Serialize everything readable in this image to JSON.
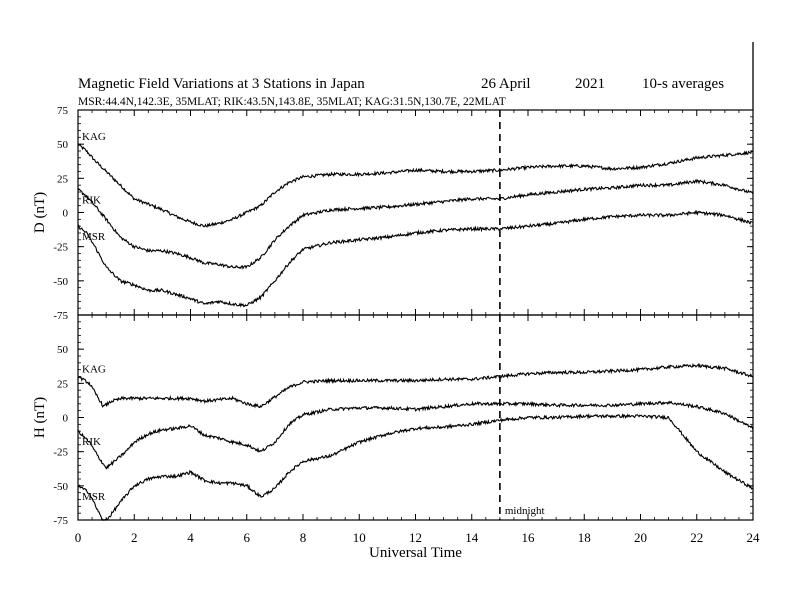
{
  "header": {
    "title": "Magnetic Field Variations at 3 Stations in Japan",
    "date": "26  April",
    "year": "2021",
    "averaging": "10-s averages",
    "stations_line": "MSR:44.4N,142.3E, 35MLAT;  RIK:43.5N,143.8E, 35MLAT;  KAG:31.5N,130.7E, 22MLAT"
  },
  "chart_data": [
    {
      "type": "line",
      "panel": "top",
      "ylabel": "D (nT)",
      "xlabel": "",
      "xlim": [
        0,
        24
      ],
      "ylim": [
        -75,
        75
      ],
      "yticks": [
        "75",
        "50",
        "25",
        "0",
        "-25",
        "-50",
        "-75"
      ],
      "xticks_minor": [
        0,
        2,
        4,
        6,
        8,
        10,
        12,
        14,
        16,
        18,
        20,
        22,
        24
      ],
      "series": [
        {
          "name": "KAG",
          "x": [
            0,
            0.3,
            0.6,
            1,
            1.5,
            2,
            2.5,
            3,
            3.5,
            4,
            4.5,
            5,
            5.5,
            6,
            6.5,
            7,
            7.5,
            8,
            9,
            10,
            11,
            12,
            13,
            14,
            15,
            16,
            17,
            18,
            19,
            20,
            21,
            22,
            23,
            24
          ],
          "y": [
            50,
            45,
            38,
            30,
            20,
            10,
            6,
            2,
            -3,
            -7,
            -10,
            -8,
            -5,
            0,
            5,
            15,
            22,
            26,
            28,
            28,
            29,
            31,
            30,
            30,
            31,
            33,
            34,
            34,
            32,
            33,
            36,
            40,
            42,
            44
          ]
        },
        {
          "name": "RIK",
          "x": [
            0,
            0.3,
            0.6,
            1,
            1.5,
            2,
            2.5,
            3,
            3.5,
            4,
            4.5,
            5,
            5.5,
            6,
            6.5,
            7,
            7.5,
            8,
            9,
            10,
            11,
            12,
            13,
            14,
            15,
            16,
            17,
            18,
            19,
            20,
            21,
            22,
            23,
            24
          ],
          "y": [
            17,
            12,
            5,
            -5,
            -18,
            -25,
            -28,
            -28,
            -30,
            -33,
            -37,
            -38,
            -40,
            -40,
            -33,
            -20,
            -10,
            -2,
            2,
            3,
            4,
            6,
            8,
            10,
            10,
            13,
            15,
            17,
            18,
            20,
            20,
            23,
            20,
            14
          ]
        },
        {
          "name": "MSR",
          "x": [
            0,
            0.3,
            0.6,
            1,
            1.5,
            2,
            2.5,
            3,
            3.5,
            4,
            4.5,
            5,
            5.5,
            6,
            6.5,
            7,
            7.5,
            8,
            9,
            10,
            11,
            12,
            13,
            14,
            15,
            16,
            17,
            18,
            19,
            20,
            21,
            22,
            23,
            24
          ],
          "y": [
            -10,
            -15,
            -25,
            -40,
            -50,
            -53,
            -57,
            -57,
            -60,
            -63,
            -67,
            -65,
            -67,
            -68,
            -62,
            -50,
            -37,
            -27,
            -22,
            -20,
            -18,
            -15,
            -13,
            -12,
            -12,
            -10,
            -8,
            -5,
            -3,
            -2,
            -2,
            0,
            -2,
            -8
          ]
        }
      ],
      "annotations": [
        {
          "x": 15,
          "type": "dashed-vertical"
        }
      ]
    },
    {
      "type": "line",
      "panel": "bottom",
      "ylabel": "H (nT)",
      "xlabel": "Universal Time",
      "xlim": [
        0,
        24
      ],
      "ylim": [
        -75,
        75
      ],
      "yticks": [
        "50",
        "25",
        "0",
        "-25",
        "-50",
        "-75"
      ],
      "xticks": [
        "0",
        "2",
        "4",
        "6",
        "8",
        "10",
        "12",
        "14",
        "16",
        "18",
        "20",
        "22",
        "24"
      ],
      "series": [
        {
          "name": "KAG",
          "x": [
            0,
            0.4,
            0.7,
            0.9,
            1.2,
            1.6,
            2,
            2.5,
            3,
            3.5,
            4,
            4.5,
            5,
            5.5,
            6,
            6.5,
            7,
            7.5,
            8,
            9,
            10,
            11,
            12,
            13,
            14,
            15,
            16,
            17,
            18,
            19,
            20,
            21,
            22,
            23,
            24
          ],
          "y": [
            30,
            25,
            15,
            8,
            12,
            14,
            14,
            14,
            14,
            14,
            14,
            12,
            13,
            14,
            10,
            8,
            15,
            22,
            26,
            27,
            27,
            27,
            27,
            28,
            28,
            30,
            32,
            33,
            33,
            34,
            35,
            37,
            38,
            36,
            30
          ]
        },
        {
          "name": "RIK",
          "x": [
            0,
            0.4,
            0.7,
            1,
            1.3,
            1.7,
            2,
            2.5,
            3,
            3.5,
            4,
            4.5,
            5,
            5.5,
            6,
            6.5,
            7,
            7.5,
            8,
            9,
            10,
            11,
            12,
            13,
            14,
            15,
            16,
            17,
            18,
            19,
            20,
            21,
            22,
            23,
            24
          ],
          "y": [
            -10,
            -18,
            -28,
            -37,
            -32,
            -25,
            -18,
            -12,
            -9,
            -8,
            -6,
            -13,
            -15,
            -18,
            -20,
            -25,
            -18,
            -5,
            2,
            6,
            7,
            7,
            6,
            8,
            10,
            10,
            10,
            9,
            9,
            9,
            10,
            11,
            8,
            3,
            -8
          ]
        },
        {
          "name": "MSR",
          "x": [
            0,
            0.4,
            0.7,
            0.9,
            1.1,
            1.5,
            2,
            2.5,
            3,
            3.5,
            4,
            4.5,
            5,
            5.5,
            6,
            6.5,
            7,
            7.5,
            8,
            9,
            10,
            11,
            12,
            13,
            14,
            15,
            16,
            17,
            18,
            19,
            20,
            21,
            22,
            23,
            24
          ],
          "y": [
            -50,
            -55,
            -68,
            -76,
            -73,
            -62,
            -50,
            -45,
            -43,
            -43,
            -40,
            -46,
            -48,
            -48,
            -50,
            -58,
            -52,
            -40,
            -32,
            -28,
            -18,
            -12,
            -8,
            -7,
            -5,
            -2,
            0,
            0,
            1,
            1,
            1,
            0,
            -25,
            -40,
            -52
          ]
        }
      ],
      "annotations": [
        {
          "x": 15,
          "type": "dashed-vertical",
          "text": "midnight"
        }
      ]
    }
  ]
}
